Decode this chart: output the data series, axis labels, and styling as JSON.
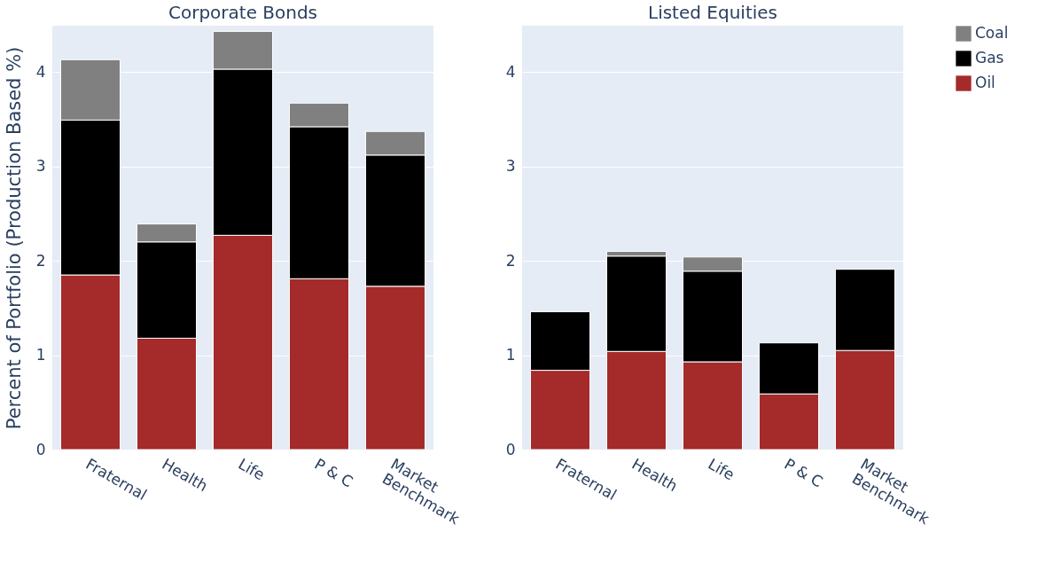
{
  "chart_data": [
    {
      "type": "bar",
      "title": "Corporate Bonds",
      "ylabel": "Percent of Portfolio (Production Based %)",
      "categories": [
        "Fraternal",
        "Health",
        "Life",
        "P & C",
        "Market\nBenchmark"
      ],
      "stacked": true,
      "ylim": [
        0,
        4.49
      ],
      "yticks": [
        0,
        1,
        2,
        3,
        4
      ],
      "grid": "y",
      "legend": "right",
      "series": [
        {
          "name": "Oil",
          "color": "#a52a2a",
          "values": [
            1.85,
            1.18,
            2.27,
            1.81,
            1.73
          ]
        },
        {
          "name": "Gas",
          "color": "#000000",
          "values": [
            1.64,
            1.02,
            1.76,
            1.61,
            1.39
          ]
        },
        {
          "name": "Coal",
          "color": "#808080",
          "values": [
            0.64,
            0.19,
            0.4,
            0.25,
            0.25
          ]
        }
      ]
    },
    {
      "type": "bar",
      "title": "Listed Equities",
      "categories": [
        "Fraternal",
        "Health",
        "Life",
        "P & C",
        "Market\nBenchmark"
      ],
      "stacked": true,
      "ylim": [
        0,
        4.49
      ],
      "yticks": [
        0,
        1,
        2,
        3,
        4
      ],
      "grid": "y",
      "legend": "right",
      "series": [
        {
          "name": "Oil",
          "color": "#a52a2a",
          "values": [
            0.84,
            1.04,
            0.93,
            0.59,
            1.05
          ]
        },
        {
          "name": "Gas",
          "color": "#000000",
          "values": [
            0.62,
            1.01,
            0.96,
            0.54,
            0.86
          ]
        },
        {
          "name": "Coal",
          "color": "#808080",
          "values": [
            null,
            0.05,
            0.15,
            null,
            null
          ]
        }
      ]
    }
  ]
}
